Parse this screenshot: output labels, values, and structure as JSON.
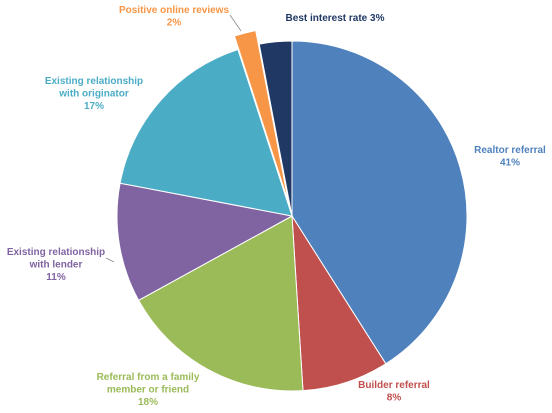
{
  "chart_data": {
    "type": "pie",
    "title": "",
    "start_angle_deg": 0,
    "direction": "clockwise",
    "slices": [
      {
        "name": "Realtor referral",
        "value": 41,
        "percent_label": "41%",
        "color": "#4F81BD",
        "label_lines": [
          "Realtor referral"
        ],
        "label_color": "#4F81BD"
      },
      {
        "name": "Builder referral",
        "value": 8,
        "percent_label": "8%",
        "color": "#C0504D",
        "label_lines": [
          "Builder referral"
        ],
        "label_color": "#C0504D"
      },
      {
        "name": "Referral from a family member or friend",
        "value": 18,
        "percent_label": "18%",
        "color": "#9BBB59",
        "label_lines": [
          "Referral from a family",
          "member or friend"
        ],
        "label_color": "#9BBB59"
      },
      {
        "name": "Existing relationship with lender",
        "value": 11,
        "percent_label": "11%",
        "color": "#8064A2",
        "label_lines": [
          "Existing relationship",
          "with lender"
        ],
        "label_color": "#8064A2"
      },
      {
        "name": "Existing relationship with originator",
        "value": 17,
        "percent_label": "17%",
        "color": "#4BACC6",
        "label_lines": [
          "Existing relationship",
          "with originator"
        ],
        "label_color": "#4BACC6"
      },
      {
        "name": "Positive online reviews",
        "value": 2,
        "percent_label": "2%",
        "color": "#F79646",
        "label_lines": [
          "Positive online reviews"
        ],
        "label_color": "#F79646",
        "exploded": true
      },
      {
        "name": "Best interest rate",
        "value": 3,
        "percent_label": "3%",
        "color": "#1F3864",
        "label_lines": [
          "Best interest rate 3%"
        ],
        "label_color": "#1F3864",
        "percent_inline": true
      }
    ]
  }
}
